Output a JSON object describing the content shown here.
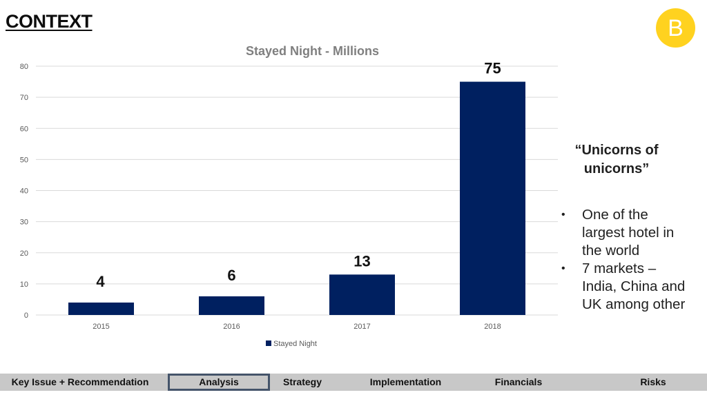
{
  "header": {
    "title": "CONTEXT",
    "logo_letter": "B"
  },
  "colors": {
    "bar": "#002060",
    "logo": "#ffd21f",
    "gridline": "#d9d9d9",
    "navbar": "#c8c8c8"
  },
  "chart_data": {
    "type": "bar",
    "title": "Stayed Night - Millions",
    "categories": [
      "2015",
      "2016",
      "2017",
      "2018"
    ],
    "series": [
      {
        "name": "Stayed Night",
        "values": [
          4,
          6,
          13,
          75
        ]
      }
    ],
    "data_labels": [
      "4",
      "6",
      "13",
      "75"
    ],
    "yticks": [
      "0",
      "10",
      "20",
      "30",
      "40",
      "50",
      "60",
      "70",
      "80"
    ],
    "ylim": [
      0,
      80
    ],
    "xlabel": "",
    "ylabel": "",
    "grid": true,
    "legend": "bottom"
  },
  "side_note": {
    "quote": "“Unicorns of unicorns”",
    "bullets": [
      "One of the largest hotel in the world",
      "7 markets – India, China and UK among other"
    ]
  },
  "nav": {
    "items": [
      "Key Issue + Recommendation",
      "Analysis",
      "Strategy",
      "Implementation",
      "Financials",
      "Risks"
    ],
    "active_index": 1
  }
}
